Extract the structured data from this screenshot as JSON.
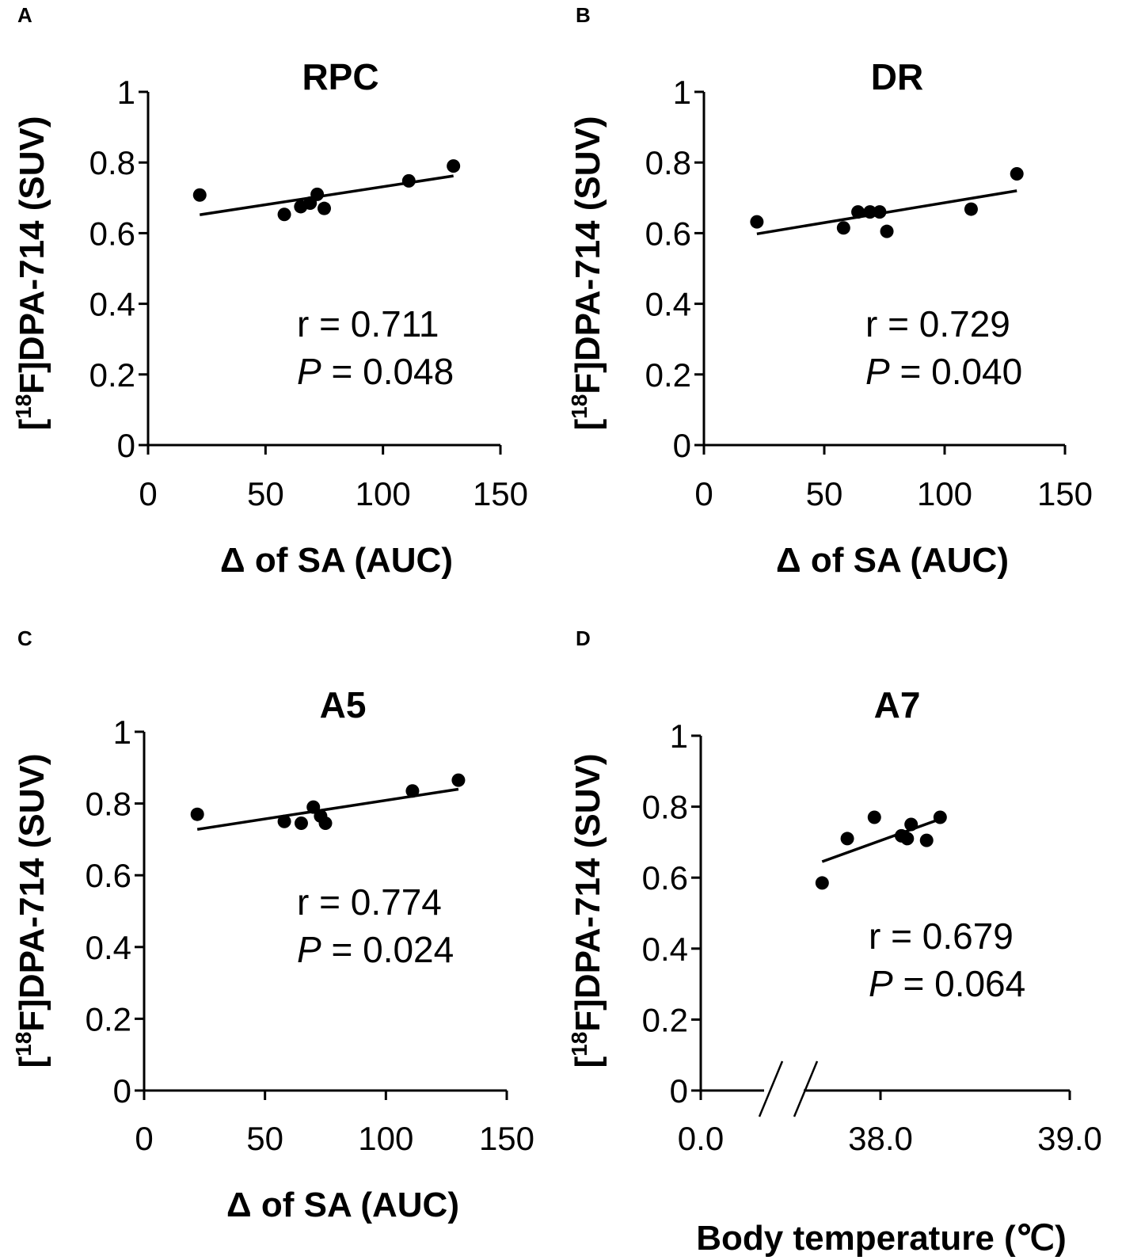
{
  "chart_data": [
    {
      "panel": "A",
      "type": "scatter",
      "title": "RPC",
      "xlabel": "Δ of SA (AUC)",
      "ylabel_pre": "[",
      "ylabel_sup": "18",
      "ylabel_post": "F]DPA-714 (SUV)",
      "xlim": [
        0,
        150
      ],
      "ylim": [
        0,
        1
      ],
      "xticks": [
        {
          "v": 0,
          "label": "0"
        },
        {
          "v": 50,
          "label": "50"
        },
        {
          "v": 100,
          "label": "100"
        },
        {
          "v": 150,
          "label": "150"
        }
      ],
      "yticks": [
        {
          "v": 0,
          "label": "0"
        },
        {
          "v": 0.2,
          "label": "0.2"
        },
        {
          "v": 0.4,
          "label": "0.4"
        },
        {
          "v": 0.6,
          "label": "0.6"
        },
        {
          "v": 0.8,
          "label": "0.8"
        },
        {
          "v": 1,
          "label": "1"
        }
      ],
      "points": [
        [
          22,
          0.708
        ],
        [
          58,
          0.653
        ],
        [
          65,
          0.675
        ],
        [
          69,
          0.685
        ],
        [
          72,
          0.71
        ],
        [
          75,
          0.67
        ],
        [
          111,
          0.748
        ],
        [
          130,
          0.79
        ]
      ],
      "trend": [
        [
          22,
          0.652
        ],
        [
          130,
          0.762
        ]
      ],
      "r_text": "r = 0.711",
      "p_label": "P",
      "p_text": " = 0.048"
    },
    {
      "panel": "B",
      "type": "scatter",
      "title": "DR",
      "xlabel": "Δ of SA (AUC)",
      "ylabel_pre": "[",
      "ylabel_sup": "18",
      "ylabel_post": "F]DPA-714 (SUV)",
      "xlim": [
        0,
        150
      ],
      "ylim": [
        0,
        1
      ],
      "xticks": [
        {
          "v": 0,
          "label": "0"
        },
        {
          "v": 50,
          "label": "50"
        },
        {
          "v": 100,
          "label": "100"
        },
        {
          "v": 150,
          "label": "150"
        }
      ],
      "yticks": [
        {
          "v": 0,
          "label": "0"
        },
        {
          "v": 0.2,
          "label": "0.2"
        },
        {
          "v": 0.4,
          "label": "0.4"
        },
        {
          "v": 0.6,
          "label": "0.6"
        },
        {
          "v": 0.8,
          "label": "0.8"
        },
        {
          "v": 1,
          "label": "1"
        }
      ],
      "points": [
        [
          22,
          0.632
        ],
        [
          58,
          0.615
        ],
        [
          64,
          0.66
        ],
        [
          69,
          0.66
        ],
        [
          73,
          0.66
        ],
        [
          76,
          0.605
        ],
        [
          111,
          0.668
        ],
        [
          130,
          0.768
        ]
      ],
      "trend": [
        [
          22,
          0.598
        ],
        [
          130,
          0.72
        ]
      ],
      "r_text": "r = 0.729",
      "p_label": "P",
      "p_text": " = 0.040"
    },
    {
      "panel": "C",
      "type": "scatter",
      "title": "A5",
      "xlabel": "Δ of SA (AUC)",
      "ylabel_pre": "[",
      "ylabel_sup": "18",
      "ylabel_post": "F]DPA-714 (SUV)",
      "xlim": [
        0,
        150
      ],
      "ylim": [
        0,
        1
      ],
      "xticks": [
        {
          "v": 0,
          "label": "0"
        },
        {
          "v": 50,
          "label": "50"
        },
        {
          "v": 100,
          "label": "100"
        },
        {
          "v": 150,
          "label": "150"
        }
      ],
      "yticks": [
        {
          "v": 0,
          "label": "0"
        },
        {
          "v": 0.2,
          "label": "0.2"
        },
        {
          "v": 0.4,
          "label": "0.4"
        },
        {
          "v": 0.6,
          "label": "0.6"
        },
        {
          "v": 0.8,
          "label": "0.8"
        },
        {
          "v": 1,
          "label": "1"
        }
      ],
      "points": [
        [
          22,
          0.77
        ],
        [
          58,
          0.75
        ],
        [
          65,
          0.745
        ],
        [
          70,
          0.79
        ],
        [
          73,
          0.765
        ],
        [
          75,
          0.745
        ],
        [
          111,
          0.835
        ],
        [
          130,
          0.865
        ]
      ],
      "trend": [
        [
          22,
          0.728
        ],
        [
          130,
          0.84
        ]
      ],
      "r_text": "r = 0.774",
      "p_label": "P",
      "p_text": " = 0.024"
    },
    {
      "panel": "D",
      "type": "scatter",
      "title": "A7",
      "xlabel": "Body temperature (℃)",
      "ylabel_pre": "[",
      "ylabel_sup": "18",
      "ylabel_post": "F]DPA-714 (SUV)",
      "axis_break": true,
      "ylim": [
        0,
        1
      ],
      "xticks": [
        {
          "label": "0.0"
        },
        {
          "label": "38.0"
        },
        {
          "label": "39.0"
        }
      ],
      "yticks": [
        {
          "v": 0,
          "label": "0"
        },
        {
          "v": 0.2,
          "label": "0.2"
        },
        {
          "v": 0.4,
          "label": "0.4"
        },
        {
          "v": 0.6,
          "label": "0.6"
        },
        {
          "v": 0.8,
          "label": "0.8"
        },
        {
          "v": 1,
          "label": "1"
        }
      ],
      "broken_xlim": [
        37.6,
        39.0
      ],
      "points": [
        [
          37.72,
          0.585
        ],
        [
          37.85,
          0.71
        ],
        [
          37.99,
          0.77
        ],
        [
          38.13,
          0.718
        ],
        [
          38.16,
          0.71
        ],
        [
          38.18,
          0.75
        ],
        [
          38.26,
          0.705
        ],
        [
          38.33,
          0.77
        ]
      ],
      "trend": [
        [
          37.72,
          0.645
        ],
        [
          38.33,
          0.765
        ]
      ],
      "r_text": "r = 0.679",
      "p_label": "P",
      "p_text": " = 0.064"
    }
  ]
}
